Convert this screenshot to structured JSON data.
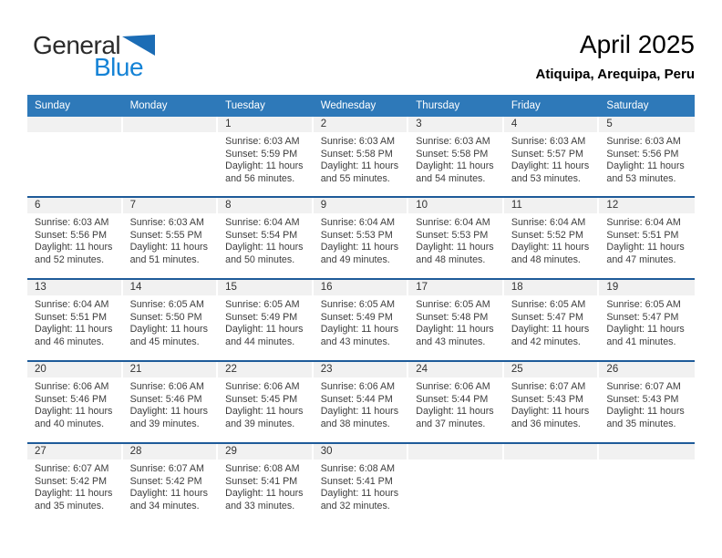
{
  "logo": {
    "text_general": "General",
    "text_blue": "Blue"
  },
  "header": {
    "title": "April 2025",
    "subtitle": "Atiquipa, Arequipa, Peru"
  },
  "colors": {
    "header_bar": "#2E79B9",
    "week_divider": "#1E5B99",
    "date_strip": "#F1F1F1",
    "logo_blue_text": "#1583D6",
    "logo_triangle": "#1B6CB5"
  },
  "labels": {
    "sunrise": "Sunrise:",
    "sunset": "Sunset:",
    "daylight": "Daylight:"
  },
  "calendar": {
    "day_headers": [
      "Sunday",
      "Monday",
      "Tuesday",
      "Wednesday",
      "Thursday",
      "Friday",
      "Saturday"
    ],
    "weeks": [
      {
        "days": [
          null,
          null,
          {
            "date": "1",
            "sunrise": "6:03 AM",
            "sunset": "5:59 PM",
            "daylight": "11 hours and 56 minutes."
          },
          {
            "date": "2",
            "sunrise": "6:03 AM",
            "sunset": "5:58 PM",
            "daylight": "11 hours and 55 minutes."
          },
          {
            "date": "3",
            "sunrise": "6:03 AM",
            "sunset": "5:58 PM",
            "daylight": "11 hours and 54 minutes."
          },
          {
            "date": "4",
            "sunrise": "6:03 AM",
            "sunset": "5:57 PM",
            "daylight": "11 hours and 53 minutes."
          },
          {
            "date": "5",
            "sunrise": "6:03 AM",
            "sunset": "5:56 PM",
            "daylight": "11 hours and 53 minutes."
          }
        ]
      },
      {
        "days": [
          {
            "date": "6",
            "sunrise": "6:03 AM",
            "sunset": "5:56 PM",
            "daylight": "11 hours and 52 minutes."
          },
          {
            "date": "7",
            "sunrise": "6:03 AM",
            "sunset": "5:55 PM",
            "daylight": "11 hours and 51 minutes."
          },
          {
            "date": "8",
            "sunrise": "6:04 AM",
            "sunset": "5:54 PM",
            "daylight": "11 hours and 50 minutes."
          },
          {
            "date": "9",
            "sunrise": "6:04 AM",
            "sunset": "5:53 PM",
            "daylight": "11 hours and 49 minutes."
          },
          {
            "date": "10",
            "sunrise": "6:04 AM",
            "sunset": "5:53 PM",
            "daylight": "11 hours and 48 minutes."
          },
          {
            "date": "11",
            "sunrise": "6:04 AM",
            "sunset": "5:52 PM",
            "daylight": "11 hours and 48 minutes."
          },
          {
            "date": "12",
            "sunrise": "6:04 AM",
            "sunset": "5:51 PM",
            "daylight": "11 hours and 47 minutes."
          }
        ]
      },
      {
        "days": [
          {
            "date": "13",
            "sunrise": "6:04 AM",
            "sunset": "5:51 PM",
            "daylight": "11 hours and 46 minutes."
          },
          {
            "date": "14",
            "sunrise": "6:05 AM",
            "sunset": "5:50 PM",
            "daylight": "11 hours and 45 minutes."
          },
          {
            "date": "15",
            "sunrise": "6:05 AM",
            "sunset": "5:49 PM",
            "daylight": "11 hours and 44 minutes."
          },
          {
            "date": "16",
            "sunrise": "6:05 AM",
            "sunset": "5:49 PM",
            "daylight": "11 hours and 43 minutes."
          },
          {
            "date": "17",
            "sunrise": "6:05 AM",
            "sunset": "5:48 PM",
            "daylight": "11 hours and 43 minutes."
          },
          {
            "date": "18",
            "sunrise": "6:05 AM",
            "sunset": "5:47 PM",
            "daylight": "11 hours and 42 minutes."
          },
          {
            "date": "19",
            "sunrise": "6:05 AM",
            "sunset": "5:47 PM",
            "daylight": "11 hours and 41 minutes."
          }
        ]
      },
      {
        "days": [
          {
            "date": "20",
            "sunrise": "6:06 AM",
            "sunset": "5:46 PM",
            "daylight": "11 hours and 40 minutes."
          },
          {
            "date": "21",
            "sunrise": "6:06 AM",
            "sunset": "5:46 PM",
            "daylight": "11 hours and 39 minutes."
          },
          {
            "date": "22",
            "sunrise": "6:06 AM",
            "sunset": "5:45 PM",
            "daylight": "11 hours and 39 minutes."
          },
          {
            "date": "23",
            "sunrise": "6:06 AM",
            "sunset": "5:44 PM",
            "daylight": "11 hours and 38 minutes."
          },
          {
            "date": "24",
            "sunrise": "6:06 AM",
            "sunset": "5:44 PM",
            "daylight": "11 hours and 37 minutes."
          },
          {
            "date": "25",
            "sunrise": "6:07 AM",
            "sunset": "5:43 PM",
            "daylight": "11 hours and 36 minutes."
          },
          {
            "date": "26",
            "sunrise": "6:07 AM",
            "sunset": "5:43 PM",
            "daylight": "11 hours and 35 minutes."
          }
        ]
      },
      {
        "days": [
          {
            "date": "27",
            "sunrise": "6:07 AM",
            "sunset": "5:42 PM",
            "daylight": "11 hours and 35 minutes."
          },
          {
            "date": "28",
            "sunrise": "6:07 AM",
            "sunset": "5:42 PM",
            "daylight": "11 hours and 34 minutes."
          },
          {
            "date": "29",
            "sunrise": "6:08 AM",
            "sunset": "5:41 PM",
            "daylight": "11 hours and 33 minutes."
          },
          {
            "date": "30",
            "sunrise": "6:08 AM",
            "sunset": "5:41 PM",
            "daylight": "11 hours and 32 minutes."
          },
          null,
          null,
          null
        ]
      }
    ]
  }
}
